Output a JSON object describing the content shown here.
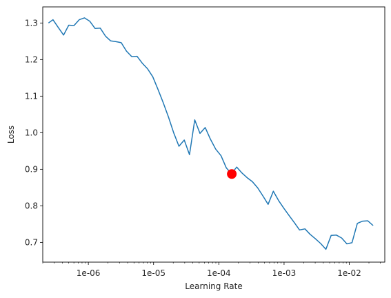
{
  "chart_data": {
    "type": "line",
    "xlabel": "Learning Rate",
    "ylabel": "Loss",
    "x_scale": "log",
    "xlim": [
      2e-07,
      0.035
    ],
    "ylim": [
      0.646,
      1.344
    ],
    "x_ticks": [
      {
        "value": 1e-06,
        "label": "1e-06"
      },
      {
        "value": 1e-05,
        "label": "1e-05"
      },
      {
        "value": 0.0001,
        "label": "1e-04"
      },
      {
        "value": 0.001,
        "label": "1e-03"
      },
      {
        "value": 0.01,
        "label": "1e-02"
      }
    ],
    "y_ticks": [
      {
        "value": 0.7,
        "label": "0.7"
      },
      {
        "value": 0.8,
        "label": "0.8"
      },
      {
        "value": 0.9,
        "label": "0.9"
      },
      {
        "value": 1.0,
        "label": "1.0"
      },
      {
        "value": 1.1,
        "label": "1.1"
      },
      {
        "value": 1.2,
        "label": "1.2"
      },
      {
        "value": 1.3,
        "label": "1.3"
      }
    ],
    "grid": false,
    "series": [
      {
        "color": "#1f77b4",
        "x": [
          2.45e-07,
          2.87e-07,
          3.45e-07,
          4.17e-07,
          5.01e-07,
          6.03e-07,
          7.24e-07,
          8.71e-07,
          1.05e-06,
          1.27e-06,
          1.52e-06,
          1.83e-06,
          2.2e-06,
          2.66e-06,
          3.19e-06,
          3.84e-06,
          4.63e-06,
          5.57e-06,
          6.7e-06,
          8.06e-06,
          9.7e-06,
          1.17e-05,
          1.4e-05,
          1.69e-05,
          2.03e-05,
          2.45e-05,
          2.95e-05,
          3.55e-05,
          4.27e-05,
          5.14e-05,
          6.18e-05,
          7.44e-05,
          8.95e-05,
          0.000108,
          0.00013,
          0.000156,
          0.000188,
          0.000226,
          0.000272,
          0.000327,
          0.000394,
          0.000474,
          0.00057,
          0.000686,
          0.000826,
          0.000994,
          0.0012,
          0.00144,
          0.00173,
          0.00209,
          0.00251,
          0.00302,
          0.00364,
          0.00438,
          0.00527,
          0.00634,
          0.00763,
          0.00918,
          0.011,
          0.0133,
          0.016,
          0.0192,
          0.0232
        ],
        "y": [
          1.3,
          1.309,
          1.288,
          1.267,
          1.294,
          1.293,
          1.309,
          1.314,
          1.305,
          1.285,
          1.286,
          1.264,
          1.251,
          1.249,
          1.246,
          1.223,
          1.208,
          1.209,
          1.19,
          1.175,
          1.153,
          1.118,
          1.083,
          1.043,
          1.0,
          0.963,
          0.98,
          0.94,
          1.035,
          0.998,
          1.014,
          0.982,
          0.955,
          0.937,
          0.904,
          0.888,
          0.906,
          0.89,
          0.877,
          0.866,
          0.849,
          0.827,
          0.804,
          0.84,
          0.814,
          0.793,
          0.773,
          0.754,
          0.734,
          0.737,
          0.722,
          0.71,
          0.697,
          0.681,
          0.719,
          0.72,
          0.712,
          0.696,
          0.699,
          0.752,
          0.758,
          0.759,
          0.746
        ]
      }
    ],
    "marker": {
      "x": 0.000158,
      "y": 0.887,
      "color": "#ff0000"
    }
  }
}
